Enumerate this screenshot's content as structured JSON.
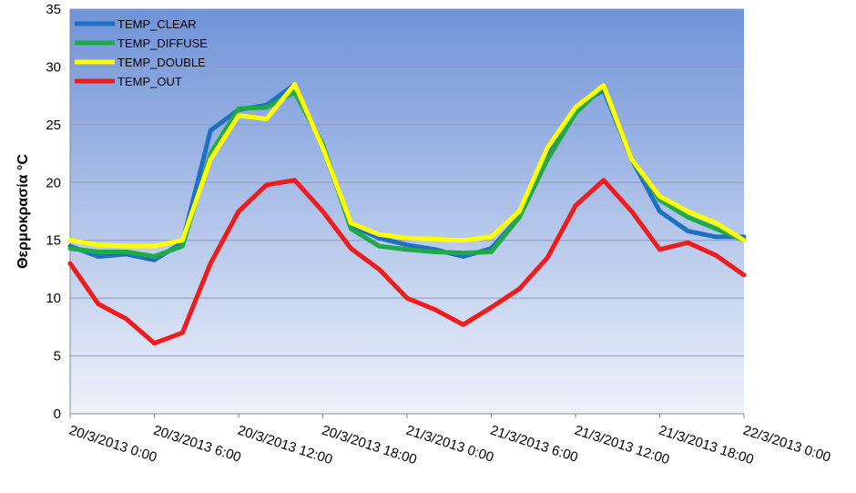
{
  "chart_data": {
    "type": "line",
    "y_label": "Θερμοκρασία °C",
    "x": [
      "20/3/2013 0:00",
      "20/3/2013 2:00",
      "20/3/2013 4:00",
      "20/3/2013 6:00",
      "20/3/2013 8:00",
      "20/3/2013 10:00",
      "20/3/2013 12:00",
      "20/3/2013 14:00",
      "20/3/2013 16:00",
      "20/3/2013 18:00",
      "20/3/2013 20:00",
      "20/3/2013 22:00",
      "21/3/2013 0:00",
      "21/3/2013 2:00",
      "21/3/2013 4:00",
      "21/3/2013 6:00",
      "21/3/2013 8:00",
      "21/3/2013 10:00",
      "21/3/2013 12:00",
      "21/3/2013 14:00",
      "21/3/2013 16:00",
      "21/3/2013 18:00",
      "21/3/2013 20:00",
      "21/3/2013 22:00",
      "22/3/2013 0:00"
    ],
    "series": [
      {
        "name": "TEMP_CLEAR",
        "color": "#1f6fc4",
        "values": [
          14.5,
          13.6,
          13.8,
          13.3,
          14.8,
          24.5,
          26.3,
          26.7,
          28.5,
          23.0,
          16.3,
          15.2,
          14.6,
          14.2,
          13.6,
          14.3,
          17.0,
          22.5,
          26.5,
          28.0,
          22.0,
          17.5,
          15.8,
          15.3,
          15.3
        ]
      },
      {
        "name": "TEMP_DIFFUSE",
        "color": "#1faa4a",
        "values": [
          14.3,
          14.0,
          14.0,
          13.6,
          14.5,
          22.5,
          26.4,
          26.5,
          27.8,
          23.3,
          16.0,
          14.5,
          14.2,
          14.0,
          13.9,
          14.0,
          17.0,
          22.0,
          26.0,
          28.3,
          22.0,
          18.5,
          17.0,
          16.0,
          15.0
        ]
      },
      {
        "name": "TEMP_DOUBLE",
        "color": "#ffff00",
        "values": [
          15.0,
          14.6,
          14.5,
          14.5,
          15.0,
          22.0,
          25.8,
          25.5,
          28.5,
          23.0,
          16.5,
          15.5,
          15.2,
          15.1,
          15.0,
          15.3,
          17.5,
          23.0,
          26.5,
          28.4,
          22.0,
          18.8,
          17.5,
          16.5,
          15.0
        ]
      },
      {
        "name": "TEMP_OUT",
        "color": "#ee1c1c",
        "values": [
          13.0,
          9.5,
          8.2,
          6.1,
          7.0,
          13.0,
          17.5,
          19.8,
          20.2,
          17.5,
          14.3,
          12.5,
          10.0,
          9.0,
          7.7,
          9.2,
          10.8,
          13.5,
          18.0,
          20.2,
          17.5,
          14.2,
          14.8,
          13.7,
          12.0
        ]
      }
    ],
    "xlim": [
      "20/3/2013 0:00",
      "22/3/2013 0:00"
    ],
    "xticks": [
      "20/3/2013 0:00",
      "20/3/2013 6:00",
      "20/3/2013 12:00",
      "20/3/2013 18:00",
      "21/3/2013 0:00",
      "21/3/2013 6:00",
      "21/3/2013 12:00",
      "21/3/2013 18:00",
      "22/3/2013 0:00"
    ],
    "ylim": [
      0,
      35
    ],
    "yticks": [
      0,
      5,
      10,
      15,
      20,
      25,
      30,
      35
    ],
    "grid": true,
    "legend": "upper left"
  }
}
